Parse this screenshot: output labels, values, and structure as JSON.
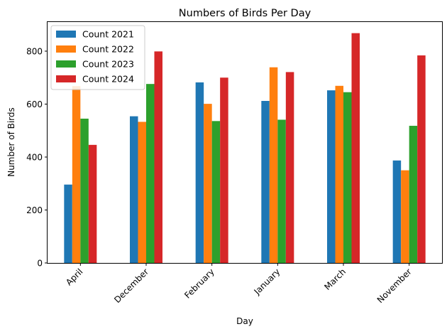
{
  "chart_data": {
    "type": "bar",
    "title": "Numbers of Birds Per Day",
    "xlabel": "Day",
    "ylabel": "Number of Birds",
    "categories": [
      "April",
      "December",
      "February",
      "January",
      "March",
      "November"
    ],
    "series": [
      {
        "name": "Count 2021",
        "color": "#1f77b4",
        "values": [
          296,
          554,
          682,
          612,
          652,
          387
        ]
      },
      {
        "name": "Count 2022",
        "color": "#ff7f0e",
        "values": [
          668,
          533,
          601,
          739,
          669,
          350
        ]
      },
      {
        "name": "Count 2023",
        "color": "#2ca02c",
        "values": [
          545,
          676,
          536,
          541,
          645,
          518
        ]
      },
      {
        "name": "Count 2024",
        "color": "#d62728",
        "values": [
          446,
          799,
          700,
          721,
          868,
          784
        ]
      }
    ],
    "ylim": [
      0,
      910
    ],
    "yticks": [
      0,
      200,
      400,
      600,
      800
    ],
    "grid": false,
    "legend_position": "upper-left"
  }
}
